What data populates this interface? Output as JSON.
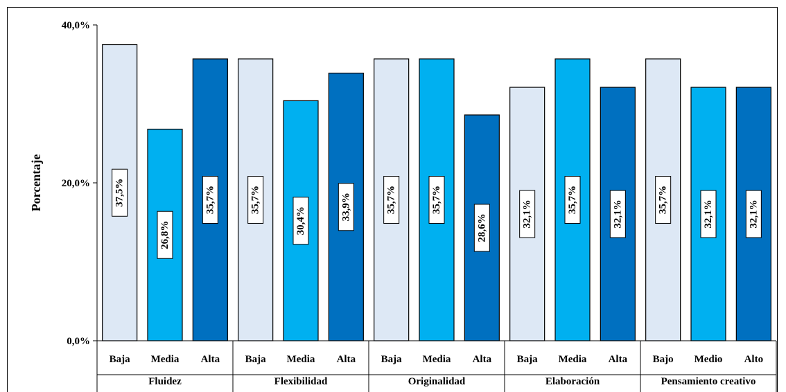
{
  "chart_data": {
    "type": "bar",
    "ylabel": "Porcentaje",
    "ylim": [
      0,
      40
    ],
    "yticks": [
      "0,0%",
      "20,0%",
      "40,0%"
    ],
    "grid": false,
    "legend": "none",
    "groups": [
      {
        "name": "Fluidez",
        "bars": [
          {
            "category": "Baja",
            "value": 37.5,
            "label": "37,5%"
          },
          {
            "category": "Media",
            "value": 26.8,
            "label": "26,8%"
          },
          {
            "category": "Alta",
            "value": 35.7,
            "label": "35,7%"
          }
        ]
      },
      {
        "name": "Flexibilidad",
        "bars": [
          {
            "category": "Baja",
            "value": 35.7,
            "label": "35,7%"
          },
          {
            "category": "Media",
            "value": 30.4,
            "label": "30,4%"
          },
          {
            "category": "Alta",
            "value": 33.9,
            "label": "33,9%"
          }
        ]
      },
      {
        "name": "Originalidad",
        "bars": [
          {
            "category": "Baja",
            "value": 35.7,
            "label": "35,7%"
          },
          {
            "category": "Media",
            "value": 35.7,
            "label": "35,7%"
          },
          {
            "category": "Alta",
            "value": 28.6,
            "label": "28,6%"
          }
        ]
      },
      {
        "name": "Elaboración",
        "bars": [
          {
            "category": "Baja",
            "value": 32.1,
            "label": "32,1%"
          },
          {
            "category": "Media",
            "value": 35.7,
            "label": "35,7%"
          },
          {
            "category": "Alta",
            "value": 32.1,
            "label": "32,1%"
          }
        ]
      },
      {
        "name": "Pensamiento creativo",
        "bars": [
          {
            "category": "Bajo",
            "value": 35.7,
            "label": "35,7%"
          },
          {
            "category": "Medio",
            "value": 32.1,
            "label": "32,1%"
          },
          {
            "category": "Alto",
            "value": 32.1,
            "label": "32,1%"
          }
        ]
      }
    ],
    "colors": {
      "level1": "#dde8f5",
      "level2": "#00b0f0",
      "level3": "#0070c0"
    }
  }
}
